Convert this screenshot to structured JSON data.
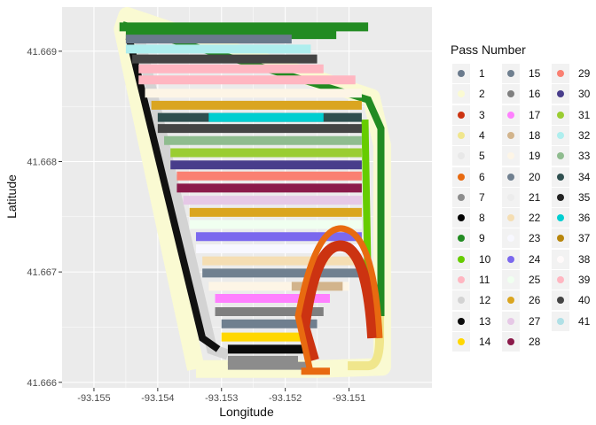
{
  "chart_data": {
    "type": "scatter",
    "title": "",
    "xlabel": "Longitude",
    "ylabel": "Latitude",
    "xlim": [
      -93.1555,
      -93.1497
    ],
    "ylim": [
      41.66595,
      41.6694
    ],
    "x_ticks": [
      -93.155,
      -93.154,
      -93.153,
      -93.152,
      -93.151
    ],
    "x_tick_labels": [
      "-93.155",
      "-93.154",
      "-93.153",
      "-93.152",
      "-93.151"
    ],
    "y_ticks": [
      41.666,
      41.667,
      41.668,
      41.669
    ],
    "y_tick_labels": [
      "41.666",
      "41.667",
      "41.668",
      "41.669"
    ],
    "grid": true,
    "legend": {
      "title": "Pass Number",
      "placement": "right",
      "columns": 3
    },
    "panel_background": "#ebebeb",
    "series": [
      {
        "name": "1",
        "color": "#6a7a8c"
      },
      {
        "name": "2",
        "color": "#fafad2",
        "outer_lat": 41.6693,
        "outer_lon": -93.1546,
        "type": "outer-ring"
      },
      {
        "name": "3",
        "color": "#cc3311"
      },
      {
        "name": "4",
        "color": "#f0e68c"
      },
      {
        "name": "5",
        "color": "#e8e8e8"
      },
      {
        "name": "6",
        "color": "#e86a10"
      },
      {
        "name": "7",
        "color": "#8c8c8c"
      },
      {
        "name": "8",
        "color": "#000000"
      },
      {
        "name": "9",
        "color": "#228b22"
      },
      {
        "name": "10",
        "color": "#66cc00"
      },
      {
        "name": "11",
        "color": "#ffb6c1"
      },
      {
        "name": "12",
        "color": "#d3d3d3"
      },
      {
        "name": "13",
        "color": "#0a0a0a"
      },
      {
        "name": "14",
        "color": "#ffd700"
      },
      {
        "name": "15",
        "color": "#6f7f8f"
      },
      {
        "name": "16",
        "color": "#7f7f7f"
      },
      {
        "name": "17",
        "color": "#ff80ff"
      },
      {
        "name": "18",
        "color": "#d2b48c"
      },
      {
        "name": "19",
        "color": "#fdf5e6"
      },
      {
        "name": "20",
        "color": "#708090"
      },
      {
        "name": "21",
        "color": "#ececec"
      },
      {
        "name": "22",
        "color": "#f5deb3"
      },
      {
        "name": "23",
        "color": "#f8f8ff"
      },
      {
        "name": "24",
        "color": "#7b68ee"
      },
      {
        "name": "25",
        "color": "#f0fff0"
      },
      {
        "name": "26",
        "color": "#daa520"
      },
      {
        "name": "27",
        "color": "#e6c8e6"
      },
      {
        "name": "28",
        "color": "#8b1a4a"
      },
      {
        "name": "29",
        "color": "#fa8072"
      },
      {
        "name": "30",
        "color": "#483d8b"
      },
      {
        "name": "31",
        "color": "#9acd32"
      },
      {
        "name": "32",
        "color": "#aeeeee"
      },
      {
        "name": "33",
        "color": "#8fbc8f"
      },
      {
        "name": "34",
        "color": "#2f4f4f"
      },
      {
        "name": "35",
        "color": "#222222"
      },
      {
        "name": "36",
        "color": "#00ced1"
      },
      {
        "name": "37",
        "color": "#b8860b"
      },
      {
        "name": "38",
        "color": "#fffafa"
      },
      {
        "name": "39",
        "color": "#ffb6c1"
      },
      {
        "name": "40",
        "color": "#444444"
      },
      {
        "name": "41",
        "color": "#b0e0e6"
      }
    ],
    "passes": [
      {
        "lat": 41.66922,
        "lon_start": -93.1546,
        "lon_end": -93.1507,
        "color": "#228b22"
      },
      {
        "lat": 41.66915,
        "lon_start": -93.1545,
        "lon_end": -93.1512,
        "color": "#228b22"
      },
      {
        "lat": 41.66911,
        "lon_start": -93.1545,
        "lon_end": -93.1519,
        "color": "#6a7a8c"
      },
      {
        "lat": 41.66902,
        "lon_start": -93.1545,
        "lon_end": -93.1516,
        "color": "#aeeeee"
      },
      {
        "lat": 41.66893,
        "lon_start": -93.1544,
        "lon_end": -93.1515,
        "color": "#444444"
      },
      {
        "lat": 41.66884,
        "lon_start": -93.1543,
        "lon_end": -93.1514,
        "color": "#ffb6c1"
      },
      {
        "lat": 41.66874,
        "lon_start": -93.1543,
        "lon_end": -93.1509,
        "color": "#ffb6c1"
      },
      {
        "lat": 41.66862,
        "lon_start": -93.1542,
        "lon_end": -93.1508,
        "color": "#fdf5e6"
      },
      {
        "lat": 41.66851,
        "lon_start": -93.1541,
        "lon_end": -93.1508,
        "color": "#daa520"
      },
      {
        "lat": 41.6684,
        "lon_start": -93.154,
        "lon_end": -93.1508,
        "color": "#2f4f4f"
      },
      {
        "lat": 41.6684,
        "lon_start": -93.1532,
        "lon_end": -93.1514,
        "color": "#00ced1"
      },
      {
        "lat": 41.6683,
        "lon_start": -93.154,
        "lon_end": -93.1508,
        "color": "#444444"
      },
      {
        "lat": 41.66819,
        "lon_start": -93.1539,
        "lon_end": -93.1508,
        "color": "#8fbc8f"
      },
      {
        "lat": 41.66808,
        "lon_start": -93.1538,
        "lon_end": -93.1508,
        "color": "#9acd32"
      },
      {
        "lat": 41.66797,
        "lon_start": -93.1538,
        "lon_end": -93.1508,
        "color": "#483d8b"
      },
      {
        "lat": 41.66787,
        "lon_start": -93.1537,
        "lon_end": -93.1508,
        "color": "#fa8072"
      },
      {
        "lat": 41.66776,
        "lon_start": -93.1537,
        "lon_end": -93.1508,
        "color": "#8b1a4a"
      },
      {
        "lat": 41.66765,
        "lon_start": -93.1536,
        "lon_end": -93.1508,
        "color": "#e6c8e6"
      },
      {
        "lat": 41.66754,
        "lon_start": -93.1535,
        "lon_end": -93.1508,
        "color": "#daa520"
      },
      {
        "lat": 41.66743,
        "lon_start": -93.1535,
        "lon_end": -93.1508,
        "color": "#f0fff0"
      },
      {
        "lat": 41.66732,
        "lon_start": -93.1534,
        "lon_end": -93.1508,
        "color": "#7b68ee"
      },
      {
        "lat": 41.66721,
        "lon_start": -93.1534,
        "lon_end": -93.1508,
        "color": "#f8f8ff"
      },
      {
        "lat": 41.6671,
        "lon_start": -93.1533,
        "lon_end": -93.1508,
        "color": "#f5deb3"
      },
      {
        "lat": 41.66699,
        "lon_start": -93.1533,
        "lon_end": -93.1508,
        "color": "#708090"
      },
      {
        "lat": 41.66687,
        "lon_start": -93.1532,
        "lon_end": -93.151,
        "color": "#fdf5e6"
      },
      {
        "lat": 41.66687,
        "lon_start": -93.1519,
        "lon_end": -93.1511,
        "color": "#d2b48c"
      },
      {
        "lat": 41.66676,
        "lon_start": -93.1531,
        "lon_end": -93.1513,
        "color": "#ff80ff"
      },
      {
        "lat": 41.66664,
        "lon_start": -93.1531,
        "lon_end": -93.1514,
        "color": "#7f7f7f"
      },
      {
        "lat": 41.66653,
        "lon_start": -93.153,
        "lon_end": -93.1515,
        "color": "#6f7f8f"
      },
      {
        "lat": 41.66641,
        "lon_start": -93.153,
        "lon_end": -93.1516,
        "color": "#ffd700"
      },
      {
        "lat": 41.6663,
        "lon_start": -93.1529,
        "lon_end": -93.1517,
        "color": "#0a0a0a"
      },
      {
        "lat": 41.6662,
        "lon_start": -93.1529,
        "lon_end": -93.1518,
        "color": "#8c8c8c"
      }
    ]
  }
}
